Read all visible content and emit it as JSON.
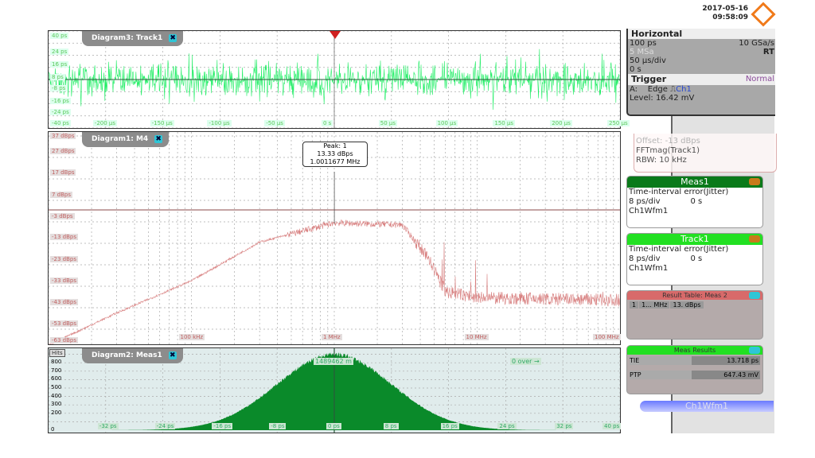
{
  "header": {
    "date": "2017-05-16",
    "time": "09:58:09",
    "logo": "rohde-schwarz-logo",
    "logo_color": "#f07a1a"
  },
  "horizontal": {
    "title": "Horizontal",
    "resolution": "100 ps",
    "sample_rate": "10 GSa/s",
    "record_length": "5 MSa",
    "mode": "RT",
    "time_scale": "50 µs/div",
    "position": "0 s"
  },
  "trigger": {
    "title": "Trigger",
    "mode": "Normal",
    "source_line": "A:",
    "type": "Edge",
    "icon": "rising-edge-icon",
    "channel": "Ch1",
    "level": "Level: 16.42 mV"
  },
  "fft_panel": {
    "offset": "Offset: -13 dBps",
    "source": "FFTmag(Track1)",
    "rbw": "RBW:  10 kHz"
  },
  "meas1": {
    "title": "Meas1",
    "line1": "Time-interval error(Jitter)",
    "scale": "8 ps/div",
    "offset": "0 s",
    "source": "Ch1Wfm1",
    "color": "#0a7a1a"
  },
  "track1": {
    "title": "Track1",
    "line1": "Time-interval error(Jitter)",
    "scale": "8 ps/div",
    "offset": "0 s",
    "source": "Ch1Wfm1",
    "color": "#22e022"
  },
  "result_table": {
    "title": "Result Table: Meas 2",
    "cells": [
      "1",
      "1... MHz",
      "13. dBps"
    ]
  },
  "meas_results": {
    "title": "Meas Results",
    "rows": [
      {
        "name": "TIE",
        "value": "13.718 ps"
      },
      {
        "name": "PTP",
        "value": "647.43 mV"
      }
    ]
  },
  "ch1wfm1": {
    "label": "Ch1Wfm1"
  },
  "diagram3": {
    "title": "Diagram3: Track1",
    "color": "#22ee66",
    "y_labels": [
      "40 ps",
      "24 ps",
      "16 ps",
      "8 ps",
      "0 ps",
      "-8 ps",
      "-16 ps",
      "-24 ps",
      "-40 ps"
    ],
    "x_labels": [
      "-250 µs",
      "-200 µs",
      "-150 µs",
      "-100 µs",
      "-50 µs",
      "0 s",
      "50 µs",
      "100 µs",
      "150 µs",
      "200 µs",
      "250 µs"
    ]
  },
  "diagram1": {
    "title": "Diagram1: M4",
    "color": "#d88080",
    "y_labels": [
      "37 dBps",
      "27 dBps",
      "17 dBps",
      "7 dBps",
      "-3 dBps",
      "-13 dBps",
      "-23 dBps",
      "-33 dBps",
      "-43 dBps",
      "-53 dBps",
      "-63 dBps"
    ],
    "x_labels": [
      "100 kHz",
      "1 MHz",
      "10 MHz",
      "100 MHz"
    ],
    "peak": {
      "label": "Peak: 1",
      "level": "13.33 dBps",
      "freq": "1.0011677 MHz"
    }
  },
  "diagram2": {
    "title": "Diagram2: Meas1",
    "color": "#0a8a2a",
    "y_unit": "Hits",
    "y_labels": [
      "800",
      "700",
      "600",
      "500",
      "400",
      "300",
      "200",
      "0"
    ],
    "x_labels": [
      "-32 ps",
      "-24 ps",
      "-16 ps",
      "-8 ps",
      "0 ps",
      "8 ps",
      "16 ps",
      "24 ps",
      "32 ps",
      "40 ps"
    ],
    "marker": "1489462 m",
    "overflow": "0 over →"
  },
  "chart_data": [
    {
      "type": "line",
      "title": "Diagram3: Track1",
      "xlim": [
        "-250 µs",
        "250 µs"
      ],
      "ylim": [
        "-40 ps",
        "40 ps"
      ]
    },
    {
      "type": "line",
      "title": "Diagram1: M4",
      "x_scale": "log",
      "xlim_hz": [
        10000,
        100000000
      ],
      "ylim": [
        -63,
        37
      ],
      "x": [
        10000,
        30000,
        100000,
        300000,
        1000000,
        3000000,
        4500000,
        6000000,
        10000000,
        100000000
      ],
      "y": [
        -63,
        -48,
        -33,
        -15,
        -6,
        -7,
        -22,
        -38,
        -41,
        -42
      ]
    },
    {
      "type": "bar",
      "title": "Diagram2: Meas1",
      "xlim": [
        -40,
        40
      ],
      "distribution": "gaussian",
      "mean_ps": 0,
      "peak_hits": 900
    }
  ]
}
